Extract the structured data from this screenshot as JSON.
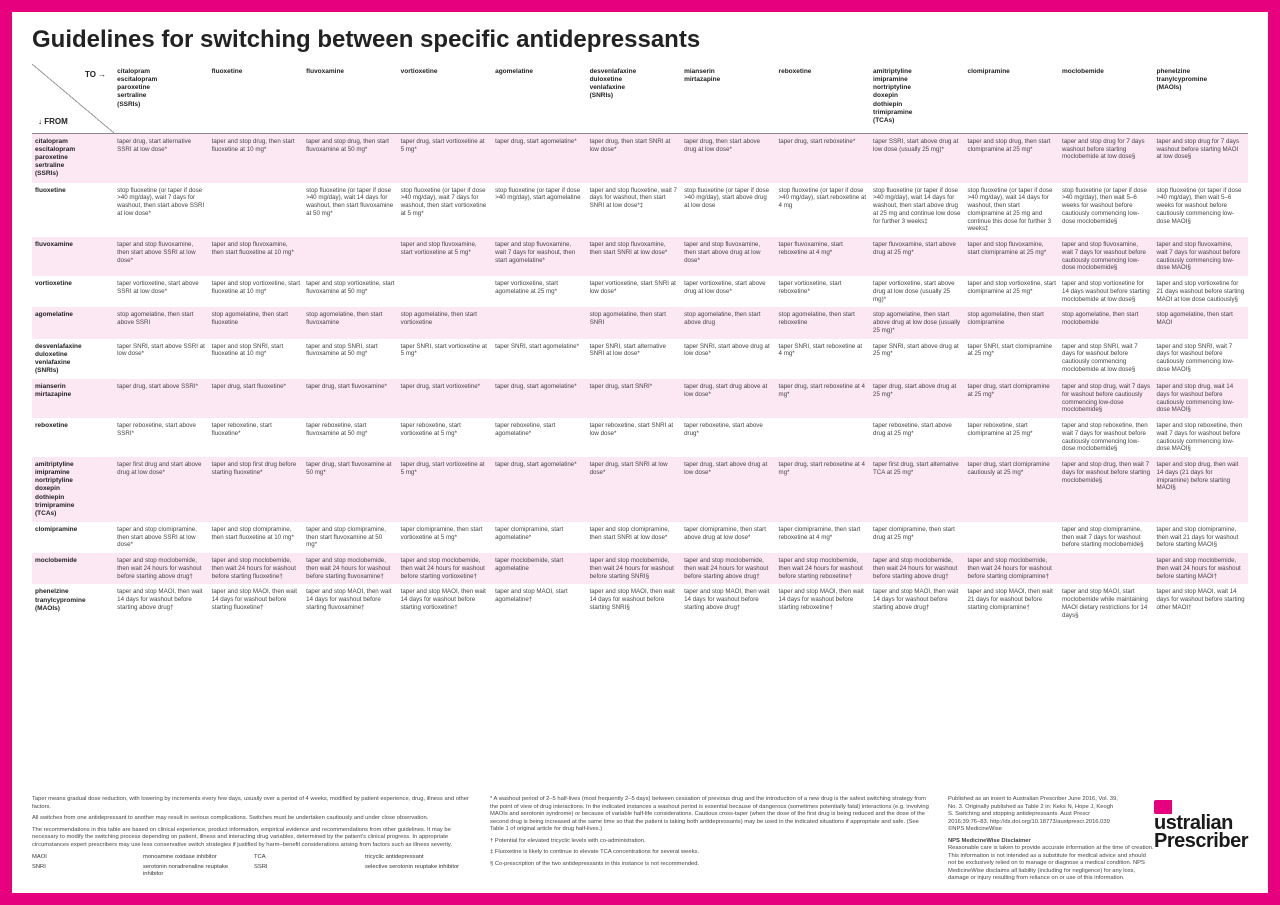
{
  "title": "Guidelines for switching between specific antidepressants",
  "axis": {
    "to": "TO →",
    "from": "↓ FROM"
  },
  "colors": {
    "brand": "#e6007e",
    "stripe_odd": "#fce8f2",
    "stripe_even": "#ffffff",
    "text": "#333333",
    "border": "#888888"
  },
  "columns": [
    "citalopram\nescitalopram\nparoxetine\nsertraline\n(SSRIs)",
    "fluoxetine",
    "fluvoxamine",
    "vortioxetine",
    "agomelatine",
    "desvenlafaxine\nduloxetine\nvenlafaxine\n(SNRIs)",
    "mianserin\nmirtazapine",
    "reboxetine",
    "amitriptyline\nimipramine\nnortriptyline\ndoxepin\ndothiepin\ntrimipramine\n(TCAs)",
    "clomipramine",
    "moclobemide",
    "phenelzine\ntranylcypromine\n(MAOIs)"
  ],
  "rows": [
    {
      "label": "citalopram\nescitalopram\nparoxetine\nsertraline\n(SSRIs)",
      "cells": [
        "taper drug, start alternative SSRI at low dose*",
        "taper and stop drug, then start fluoxetine at 10 mg*",
        "taper and stop drug, then start fluvoxamine at 50 mg*",
        "taper drug, start vortioxetine at 5 mg*",
        "taper drug, start agomelatine*",
        "taper drug, then start SNRI at low dose*",
        "taper drug, then start above drug at low dose*",
        "taper drug, start reboxetine*",
        "taper SSRI, start above drug at low dose (usually 25 mg)*",
        "taper and stop drug, then start clomipramine at 25 mg*",
        "taper and stop drug for 7 days washout before starting moclobemide at low dose§",
        "taper and stop drug for 7 days washout before starting MAOI at low dose§"
      ]
    },
    {
      "label": "fluoxetine",
      "cells": [
        "stop fluoxetine (or taper if dose >40 mg/day), wait 7 days for washout, then start above SSRI at low dose*",
        "",
        "stop fluoxetine (or taper if dose >40 mg/day), wait 14 days for washout, then start fluvoxamine at 50 mg*",
        "stop fluoxetine (or taper if dose >40 mg/day), wait 7 days for washout, then start vortioxetine at 5 mg*",
        "stop fluoxetine (or taper if dose >40 mg/day), start agomelatine",
        "taper and stop fluoxetine, wait 7 days for washout, then start SNRI at low dose*‡",
        "stop fluoxetine (or taper if dose >40 mg/day), start above drug at low dose",
        "stop fluoxetine (or taper if dose >40 mg/day), start reboxetine at 4 mg",
        "stop fluoxetine (or taper if dose >40 mg/day), wait 14 days for washout, then start above drug at 25 mg and continue low dose for further 3 weeks‡",
        "stop fluoxetine (or taper if dose >40 mg/day), wait 14 days for washout, then start clomipramine at 25 mg and continue this dose for further 3 weeks‡",
        "stop fluoxetine (or taper if dose >40 mg/day), then wait 5–6 weeks for washout before cautiously commencing low-dose moclobemide§",
        "stop fluoxetine (or taper if dose >40 mg/day), then wait 5–6 weeks for washout before cautiously commencing low-dose MAOI§"
      ]
    },
    {
      "label": "fluvoxamine",
      "cells": [
        "taper and stop fluvoxamine, then start above SSRI at low dose*",
        "taper and stop fluvoxamine, then start fluoxetine at 10 mg*",
        "",
        "taper and stop fluvoxamine, start vortioxetine at 5 mg*",
        "taper and stop fluvoxamine, wait 7 days for washout, then start agomelatine*",
        "taper and stop fluvoxamine, then start SNRI at low dose*",
        "taper and stop fluvoxamine, then start above drug at low dose*",
        "taper fluvoxamine, start reboxetine at 4 mg*",
        "taper fluvoxamine, start above drug at 25 mg*",
        "taper and stop fluvoxamine, start clomipramine at 25 mg*",
        "taper and stop fluvoxamine, wait 7 days for washout before cautiously commencing low-dose moclobemide§",
        "taper and stop fluvoxamine, wait 7 days for washout before cautiously commencing low-dose MAOI§"
      ]
    },
    {
      "label": "vortioxetine",
      "cells": [
        "taper vortioxetine, start above SSRI at low dose*",
        "taper and stop vortioxetine, start fluoxetine at 10 mg*",
        "taper and stop vortioxetine, start fluvoxamine at 50 mg*",
        "",
        "taper vortioxetine, start agomelatine at 25 mg*",
        "taper vortioxetine, start SNRI at low dose*",
        "taper vortioxetine, start above drug at low dose*",
        "taper vortioxetine, start reboxetine*",
        "taper vortioxetine, start above drug at low dose (usually 25 mg)*",
        "taper and stop vortioxetine, start clomipramine at 25 mg*",
        "taper and stop vortioxetine for 14 days washout before starting moclobemide at low dose§",
        "taper and stop vortioxetine for 21 days washout before starting MAOI at low dose cautiously§"
      ]
    },
    {
      "label": "agomelatine",
      "cells": [
        "stop agomelatine, then start above SSRI",
        "stop agomelatine, then start fluoxetine",
        "stop agomelatine, then start fluvoxamine",
        "stop agomelatine, then start vortioxetine",
        "",
        "stop agomelatine, then start SNRI",
        "stop agomelatine, then start above drug",
        "stop agomelatine, then start reboxetine",
        "stop agomelatine, then start above drug at low dose (usually 25 mg)*",
        "stop agomelatine, then start clomipramine",
        "stop agomelatine, then start moclobemide",
        "stop agomelatine, then start MAOI"
      ]
    },
    {
      "label": "desvenlafaxine\nduloxetine\nvenlafaxine\n(SNRIs)",
      "cells": [
        "taper SNRI, start above SSRI at low dose*",
        "taper and stop SNRI, start fluoxetine at 10 mg*",
        "taper and stop SNRI, start fluvoxamine at 50 mg*",
        "taper SNRI, start vortioxetine at 5 mg*",
        "taper SNRI, start agomelatine*",
        "taper SNRI, start alternative SNRI at low dose*",
        "taper SNRI, start above drug at low dose*",
        "taper SNRI, start reboxetine at 4 mg*",
        "taper SNRI, start above drug at 25 mg*",
        "taper SNRI, start clomipramine at 25 mg*",
        "taper and stop SNRI, wait 7 days for washout before cautiously commencing moclobemide at low dose§",
        "taper and stop SNRI, wait 7 days for washout before cautiously commencing low-dose MAOI§"
      ]
    },
    {
      "label": "mianserin\nmirtazapine",
      "cells": [
        "taper drug, start above SSRI*",
        "taper drug, start fluoxetine*",
        "taper drug, start fluvoxamine*",
        "taper drug, start vortioxetine*",
        "taper drug, start agomelatine*",
        "taper drug, start SNRI*",
        "taper drug, start drug above at low dose*",
        "taper drug, start reboxetine at 4 mg*",
        "taper drug, start above drug at 25 mg*",
        "taper drug, start clomipramine at 25 mg*",
        "taper and stop drug, wait 7 days for washout before cautiously commencing low-dose moclobemide§",
        "taper and stop drug, wait 14 days for washout before cautiously commencing low-dose MAOI§"
      ]
    },
    {
      "label": "reboxetine",
      "cells": [
        "taper reboxetine, start above SSRI*",
        "taper reboxetine, start fluoxetine*",
        "taper reboxetine, start fluvoxamine at 50 mg*",
        "taper reboxetine, start vortioxetine at 5 mg*",
        "taper reboxetine, start agomelatine*",
        "taper reboxetine, start SNRI at low dose*",
        "taper reboxetine, start above drug*",
        "",
        "taper reboxetine, start above drug at 25 mg*",
        "taper reboxetine, start clomipramine at 25 mg*",
        "taper and stop reboxetine, then wait 7 days for washout before cautiously commencing low-dose moclobemide§",
        "taper and stop reboxetine, then wait 7 days for washout before cautiously commencing low-dose MAOI§"
      ]
    },
    {
      "label": "amitriptyline\nimipramine\nnortriptyline\ndoxepin\ndothiepin\ntrimipramine\n(TCAs)",
      "cells": [
        "taper first drug and start above drug at low dose*",
        "taper and stop first drug before starting fluoxetine*",
        "taper drug, start fluvoxamine at 50 mg*",
        "taper drug, start vortioxetine at 5 mg*",
        "taper drug, start agomelatine*",
        "taper drug, start SNRI at low dose*",
        "taper drug, start above drug at low dose*",
        "taper drug, start reboxetine at 4 mg*",
        "taper first drug, start alternative TCA at 25 mg*",
        "taper drug, start clomipramine cautiously at 25 mg*",
        "taper and stop drug, then wait 7 days for washout before starting moclobemide§",
        "taper and stop drug, then wait 14 days (21 days for imipramine) before starting MAOI§"
      ]
    },
    {
      "label": "clomipramine",
      "cells": [
        "taper and stop clomipramine, then start above SSRI at low dose*",
        "taper and stop clomipramine, then start fluoxetine at 10 mg*",
        "taper and stop clomipramine, then start fluvoxamine at 50 mg*",
        "taper clomipramine, then start vortioxetine at 5 mg*",
        "taper clomipramine, start agomelatine*",
        "taper and stop clomipramine, then start SNRI at low dose*",
        "taper clomipramine, then start above drug at low dose*",
        "taper clomipramine, then start reboxetine at 4 mg*",
        "taper clomipramine, then start drug at 25 mg*",
        "",
        "taper and stop clomipramine, then wait 7 days for washout before starting moclobemide§",
        "taper and stop clomipramine, then wait 21 days for washout before starting MAOI§"
      ]
    },
    {
      "label": "moclobemide",
      "cells": [
        "taper and stop moclobemide, then wait 24 hours for washout before starting above drug†",
        "taper and stop moclobemide, then wait 24 hours for washout before starting fluoxetine†",
        "taper and stop moclobemide, then wait 24 hours for washout before starting fluvoxamine†",
        "taper and stop moclobemide, then wait 24 hours for washout before starting vortioxetine†",
        "taper moclobemide, start agomelatine",
        "taper and stop moclobemide, then wait 24 hours for washout before starting SNRI§",
        "taper and stop moclobemide, then wait 24 hours for washout before starting above drug†",
        "taper and stop moclobemide, then wait 24 hours for washout before starting reboxetine†",
        "taper and stop moclobemide, then wait 24 hours for washout before starting above drug†",
        "taper and stop moclobemide, then wait 24 hours for washout before starting clomipramine†",
        "",
        "taper and stop moclobemide, then wait 24 hours for washout before starting MAOI†"
      ]
    },
    {
      "label": "phenelzine\ntranylcypromine\n(MAOIs)",
      "cells": [
        "taper and stop MAOI, then wait 14 days for washout before starting above drug†",
        "taper and stop MAOI, then wait 14 days for washout before starting fluoxetine†",
        "taper and stop MAOI, then wait 14 days for washout before starting fluvoxamine†",
        "taper and stop MAOI, then wait 14 days for washout before starting vortioxetine†",
        "taper and stop MAOI, start agomelatine†",
        "taper and stop MAOI, then wait 14 days for washout before starting SNRI§",
        "taper and stop MAOI, then wait 14 days for washout before starting above drug†",
        "taper and stop MAOI, then wait 14 days for washout before starting reboxetine†",
        "taper and stop MAOI, then wait 14 days for washout before starting above drug†",
        "taper and stop MAOI, then wait 21 days for washout before starting clomipramine†",
        "taper and stop MAOI, start moclobemide while maintaining MAOI dietary restrictions for 14 days§",
        "taper and stop MAOI, wait 14 days for washout before starting other MAOI†"
      ]
    }
  ],
  "footnotes": {
    "left": [
      "Taper means gradual dose reduction, with lowering by increments every few days, usually over a period of 4 weeks, modified by patient experience, drug, illness and other factors.",
      "All switches from one antidepressant to another may result in serious complications. Switches must be undertaken cautiously and under close observation.",
      "The recommendations in this table are based on clinical experience, product information, empirical evidence and recommendations from other guidelines. It may be necessary to modify the switching process depending on patient, illness and interacting drug variables, determined by the patient's clinical progress. In appropriate circumstances expert prescribers may use less conservative switch strategies if justified by harm–benefit considerations arising from factors such as illness severity."
    ],
    "abbrev": [
      [
        "MAOI",
        "monoamine oxidase inhibitor"
      ],
      [
        "TCA",
        "tricyclic antidepressant"
      ],
      [
        "SNRI",
        "serotonin noradrenaline reuptake inhibitor"
      ],
      [
        "SSRI",
        "selective serotonin reuptake inhibitor"
      ]
    ],
    "mid": [
      "* A washout period of 2–5 half-lives (most frequently 2–5 days) between cessation of previous drug and the introduction of a new drug is the safest switching strategy from the point of view of drug interactions. In the indicated instances a washout period is essential because of dangerous (sometimes potentially fatal) interactions (e.g. involving MAOIs and serotonin syndrome) or because of variable half-life considerations. Cautious cross-taper (when the dose of the first drug is being reduced and the dose of the second drug is being increased at the same time so that the patient is taking both antidepressants) may be used in the indicated situations if appropriate and safe. (See Table 1 of original article for drug half-lives.)",
      "† Potential for elevated tricyclic levels with co-administration.",
      "‡ Fluoxetine is likely to continue to elevate TCA concentrations for several weeks.",
      "§ Co-prescription of the two antidepressants in this instance is not recommended."
    ],
    "right_pub": "Published as an insert to Australian Prescriber June 2016, Vol. 39, No. 3. Originally published as Table 2 in: Keks N, Hope J, Keogh S. Switching and stopping antidepressants. Aust Prescr 2016;39:76–83. http://dx.doi.org/10.18773/austprescr.2016.039 ©NPS MedicineWise",
    "disclaimer_title": "NPS MedicineWise Disclaimer",
    "disclaimer": "Reasonable care is taken to provide accurate information at the time of creation. This information is not intended as a substitute for medical advice and should not be exclusively relied on to manage or diagnose a medical condition. NPS MedicineWise disclaims all liability (including for negligence) for any loss, damage or injury resulting from reliance on or use of this information."
  },
  "logo": {
    "line1": "ustralian",
    "line2": "Prescriber"
  }
}
